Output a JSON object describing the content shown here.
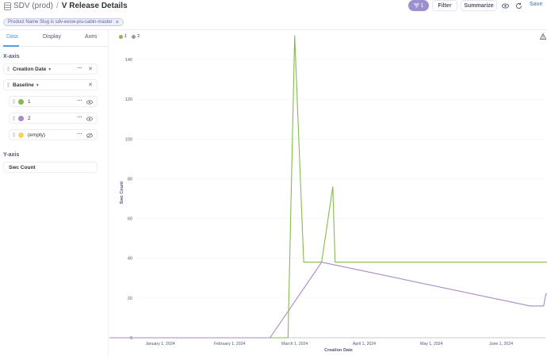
{
  "header": {
    "database": "SDV (prod)",
    "separator": "/",
    "title": "V Release Details",
    "filter_count": "1",
    "filter_label": "Filter",
    "summarize_label": "Summarize",
    "save_label": "Save"
  },
  "filter_chip": {
    "text": "Product Name Slug is sdv-eesw-piu-cabin-master",
    "close": "×"
  },
  "sidebar": {
    "tabs": [
      "Data",
      "Display",
      "Axes"
    ],
    "active_tab": "Data",
    "x_axis_label": "X-axis",
    "x_fields": [
      "Creation Date",
      "Baseline"
    ],
    "breakout_values": [
      {
        "label": "1",
        "color": "#84bb4c"
      },
      {
        "label": "2",
        "color": "#a989c5"
      },
      {
        "label": "(empty)",
        "color": "#f9d45c"
      }
    ],
    "y_axis_label": "Y-axis",
    "y_fields": [
      "Swc Count"
    ]
  },
  "chart_data": {
    "type": "line",
    "xlabel": "Creation Date",
    "ylabel": "Swc Count",
    "ylim": [
      0,
      150
    ],
    "yticks": [
      0,
      20,
      40,
      60,
      80,
      100,
      120,
      140
    ],
    "xticks": [
      "January 1, 2024",
      "February 1, 2024",
      "March 1, 2024",
      "April 1, 2024",
      "May 1, 2024",
      "June 1, 2024"
    ],
    "xrange": [
      "2023-12-01",
      "2024-06-30"
    ],
    "legend": [
      "1",
      "2"
    ],
    "series": [
      {
        "name": "1",
        "color": "#84bb4c",
        "points": [
          [
            "2023-12-01",
            0
          ],
          [
            "2024-02-27",
            0
          ],
          [
            "2024-03-01",
            152
          ],
          [
            "2024-03-05",
            38
          ],
          [
            "2024-03-13",
            38
          ],
          [
            "2024-03-18",
            76
          ],
          [
            "2024-03-19",
            38
          ],
          [
            "2024-06-30",
            38
          ]
        ]
      },
      {
        "name": "2",
        "color": "#a989c5",
        "points": [
          [
            "2023-12-01",
            0
          ],
          [
            "2024-02-19",
            0
          ],
          [
            "2024-03-13",
            38
          ],
          [
            "2024-06-14",
            16
          ],
          [
            "2024-06-20",
            16
          ],
          [
            "2024-06-21",
            22
          ],
          [
            "2024-06-23",
            23
          ],
          [
            "2024-07-05",
            23
          ]
        ]
      }
    ]
  }
}
